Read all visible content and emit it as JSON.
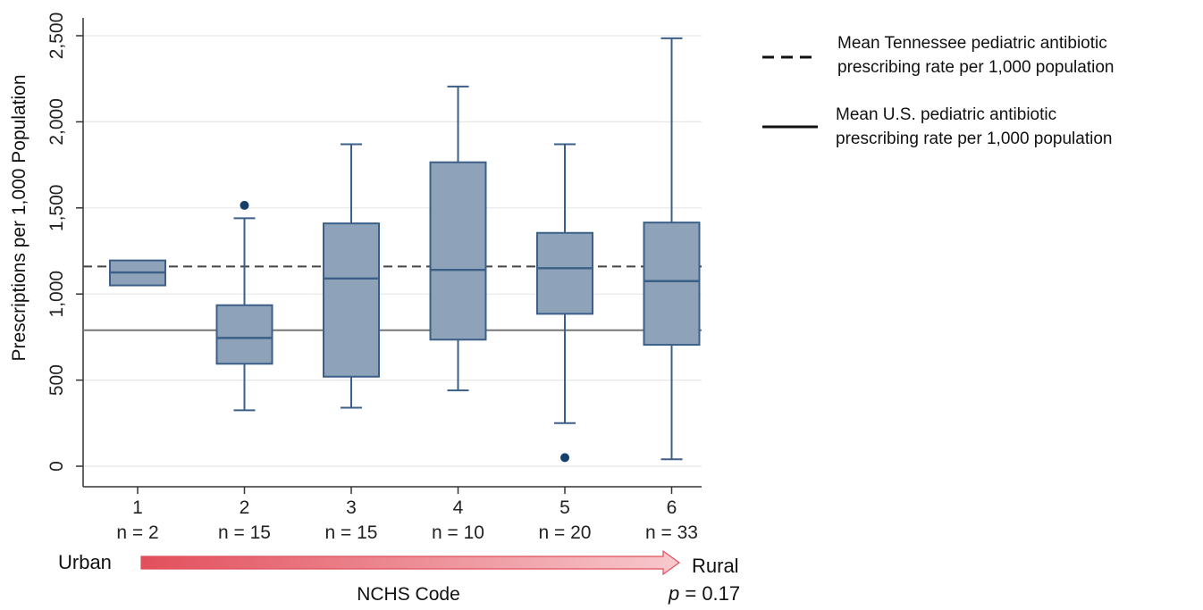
{
  "chart_data": {
    "type": "box",
    "xlabel": "NCHS Code",
    "ylabel": "Prescriptions per 1,000 Population",
    "ylim": [
      -100,
      2650
    ],
    "yticks": [
      0,
      500,
      1000,
      1500,
      2000,
      2500
    ],
    "ytick_labels": [
      "0",
      "500",
      "1,000",
      "1,500",
      "2,000",
      "2,500"
    ],
    "grid": true,
    "categories": [
      "1",
      "2",
      "3",
      "4",
      "5",
      "6"
    ],
    "n_labels": [
      "n = 2",
      "n = 15",
      "n = 15",
      "n = 10",
      "n = 20",
      "n = 33"
    ],
    "boxes": [
      {
        "category": "1",
        "whisker_low": 1050,
        "q1": 1050,
        "median": 1125,
        "q3": 1195,
        "whisker_high": 1195,
        "outliers": []
      },
      {
        "category": "2",
        "whisker_low": 325,
        "q1": 595,
        "median": 745,
        "q3": 935,
        "whisker_high": 1440,
        "outliers": [
          1515
        ]
      },
      {
        "category": "3",
        "whisker_low": 340,
        "q1": 520,
        "median": 1090,
        "q3": 1410,
        "whisker_high": 1870,
        "outliers": []
      },
      {
        "category": "4",
        "whisker_low": 440,
        "q1": 735,
        "median": 1140,
        "q3": 1765,
        "whisker_high": 2205,
        "outliers": []
      },
      {
        "category": "5",
        "whisker_low": 250,
        "q1": 885,
        "median": 1150,
        "q3": 1355,
        "whisker_high": 1870,
        "outliers": [
          50
        ]
      },
      {
        "category": "6",
        "whisker_low": 40,
        "q1": 705,
        "median": 1075,
        "q3": 1415,
        "whisker_high": 2485,
        "outliers": []
      }
    ],
    "reference_lines": [
      {
        "name": "Mean Tennessee pediatric antibiotic prescribing rate per 1,000 population",
        "value": 1160,
        "style": "dashed",
        "legend_lines": [
          "Mean Tennessee pediatric antibiotic",
          "prescribing rate per 1,000 population"
        ]
      },
      {
        "name": "Mean U.S. pediatric antibiotic prescribing rate per 1,000 population",
        "value": 790,
        "style": "solid",
        "legend_lines": [
          "Mean U.S. pediatric antibiotic",
          "prescribing rate per 1,000 population"
        ]
      }
    ],
    "legend_position": "top-right",
    "colors": {
      "box_fill": "#8ea3b9",
      "box_stroke": "#3b5f86",
      "outlier": "#15406b",
      "grid": "#e6e6e6",
      "arrow_start": "#f7c9cd",
      "arrow_end": "#e24f5c"
    }
  },
  "annotations": {
    "urban": "Urban",
    "rural": "Rural",
    "p_prefix": "p",
    "p_rest": " = 0.17"
  }
}
